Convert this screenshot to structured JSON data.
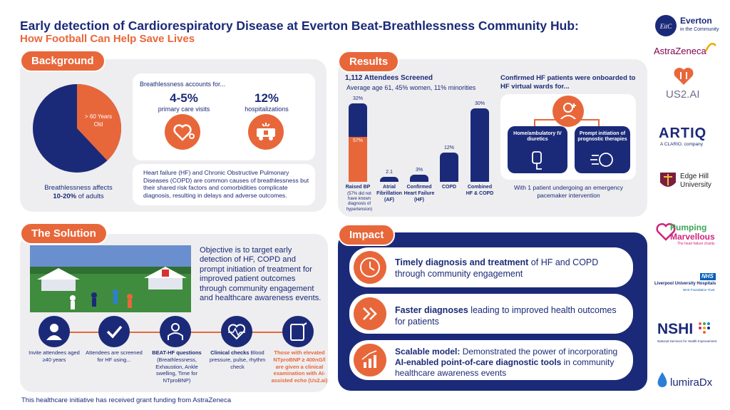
{
  "header": {
    "title": "Early detection of Cardiorespiratory Disease at Everton Beat-Breathlessness Community Hub:",
    "subtitle": "How Football Can Help Save Lives"
  },
  "background": {
    "label": "Background",
    "pie_label": "> 60 Years Old",
    "pie_share_over_60": 0.38,
    "affects_line1": "Breathlessness affects",
    "affects_line2": "10-20%",
    "affects_line3": " of adults",
    "accounts_for": "Breathlessness accounts for...",
    "stat1_value": "4-5%",
    "stat1_label": "primary care visits",
    "stat2_value": "12%",
    "stat2_label": "hospitalizations",
    "hf_text": "Heart failure (HF) and Chronic Obstructive Pulmonary Diseases (COPD) are common causes of breathlessness but their shared risk factors and comorbidities complicate diagnosis, resulting in delays and adverse outcomes."
  },
  "results": {
    "label": "Results",
    "screened": "1,112 Attendees Screened",
    "demographics": "Average age 61, 45% women, 11% minorities",
    "onboarded_title": "Confirmed HF patients were onboarded to HF virtual wards for...",
    "box1": "Home/ambulatory IV diuretics",
    "box2": "Prompt initiation of prognostic therapies",
    "pacemaker": "With 1 patient undergoing an emergency pacemaker intervention",
    "chart_data": {
      "type": "bar",
      "categories": [
        "Raised BP",
        "Atrial Fibrillation (AF)",
        "Confirmed Heart Failure (HF)",
        "COPD",
        "Combined HF & COPD"
      ],
      "values": [
        32,
        2.1,
        3,
        12,
        30
      ],
      "labels": [
        "32%",
        "2.1",
        "3%",
        "12%",
        "30%"
      ],
      "sub_value": 57,
      "sub_label": "57%",
      "raised_bp_note": "(57% did not have known diagnosis of hypertension)"
    }
  },
  "solution": {
    "label": "The Solution",
    "objective": "Objective is to target early detection of HF, COPD and prompt initiation of treatment for improved patient outcomes through community engagement and healthcare awareness events.",
    "steps": [
      {
        "text": "Invite attendees aged ≥40 years"
      },
      {
        "text": "Attendees are screened for HF using..."
      },
      {
        "bold": "BEAT-HF questions",
        "text": "(Breathlessness, Exhaustion, Ankle swelling, Time for NTproBNP)"
      },
      {
        "bold": "Clinical checks",
        "text": " Blood pressure, pulse, rhythm check"
      },
      {
        "text": "Those with elevated NTproBNP ≥ 400nG/l are given a clinical examination with AI-assisted echo (Us2.ai)"
      }
    ],
    "funding": "This healthcare initiative has received grant funding from AstraZeneca"
  },
  "impact": {
    "label": "Impact",
    "items": [
      {
        "bold": "Timely diagnosis and treatment",
        "text": " of HF and COPD through community engagement"
      },
      {
        "bold": "Faster diagnoses",
        "text": " leading to improved health outcomes for patients"
      },
      {
        "bold": "Scalable model:",
        "text": " Demonstrated the power of incorporating ",
        "bold2": "AI-enabled point-of-care diagnostic tools",
        "text2": " in community healthcare awareness events"
      }
    ]
  },
  "logos": {
    "everton_line1": "Everton",
    "everton_line2": "in the Community",
    "astrazeneca": "AstraZeneca",
    "us2ai": "US2.AI",
    "artiq": "ARTIQ",
    "artiq_sub": "A CLARIO. company",
    "edgehill_line1": "Edge Hill",
    "edgehill_line2": "University",
    "pumping_line1": "Pumping",
    "pumping_line2": "Marvellous",
    "pumping_sub": "The heart failure charity",
    "nhs": "NHS",
    "liverpool": "Liverpool University Hospitals",
    "liverpool_sub": "NHS Foundation Trust",
    "nshi": "NSHI",
    "nshi_sub": "National Services for Health Improvement",
    "lumira": "lumiraDx"
  },
  "colors": {
    "navy": "#1b2a78",
    "orange": "#e8673a",
    "panel": "#eeeef0"
  }
}
